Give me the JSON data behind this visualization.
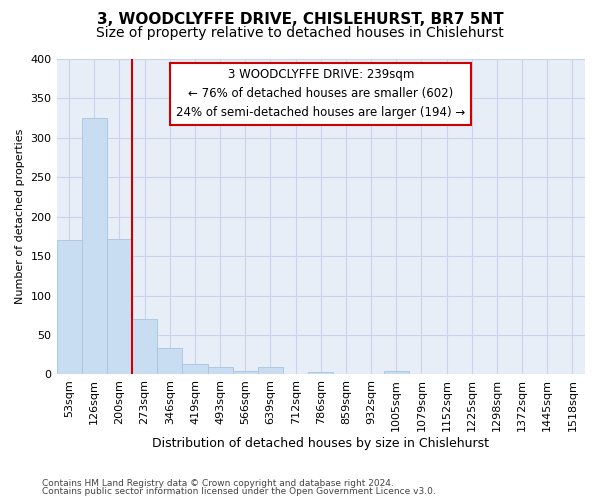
{
  "title_line1": "3, WOODCLYFFE DRIVE, CHISLEHURST, BR7 5NT",
  "title_line2": "Size of property relative to detached houses in Chislehurst",
  "xlabel": "Distribution of detached houses by size in Chislehurst",
  "ylabel": "Number of detached properties",
  "footer_line1": "Contains HM Land Registry data © Crown copyright and database right 2024.",
  "footer_line2": "Contains public sector information licensed under the Open Government Licence v3.0.",
  "categories": [
    "53sqm",
    "126sqm",
    "200sqm",
    "273sqm",
    "346sqm",
    "419sqm",
    "493sqm",
    "566sqm",
    "639sqm",
    "712sqm",
    "786sqm",
    "859sqm",
    "932sqm",
    "1005sqm",
    "1079sqm",
    "1152sqm",
    "1225sqm",
    "1298sqm",
    "1372sqm",
    "1445sqm",
    "1518sqm"
  ],
  "values": [
    170,
    325,
    172,
    70,
    33,
    13,
    10,
    4,
    9,
    0,
    3,
    0,
    0,
    4,
    0,
    0,
    0,
    0,
    0,
    0,
    0
  ],
  "bar_color": "#c9ddf2",
  "bar_edge_color": "#a8c4e0",
  "vline_color": "#cc0000",
  "ylim": [
    0,
    400
  ],
  "yticks": [
    0,
    50,
    100,
    150,
    200,
    250,
    300,
    350,
    400
  ],
  "annotation_line1": "3 WOODCLYFFE DRIVE: 239sqm",
  "annotation_line2": "← 76% of detached houses are smaller (602)",
  "annotation_line3": "24% of semi-detached houses are larger (194) →",
  "annotation_box_color": "#ffffff",
  "annotation_box_edge": "#cc0000",
  "grid_color": "#c8d4e8",
  "bg_color": "#e8eef8",
  "title1_fontsize": 11,
  "title2_fontsize": 10,
  "xlabel_fontsize": 9,
  "ylabel_fontsize": 8,
  "tick_fontsize": 8,
  "annot_fontsize": 8.5,
  "footer_fontsize": 6.5
}
